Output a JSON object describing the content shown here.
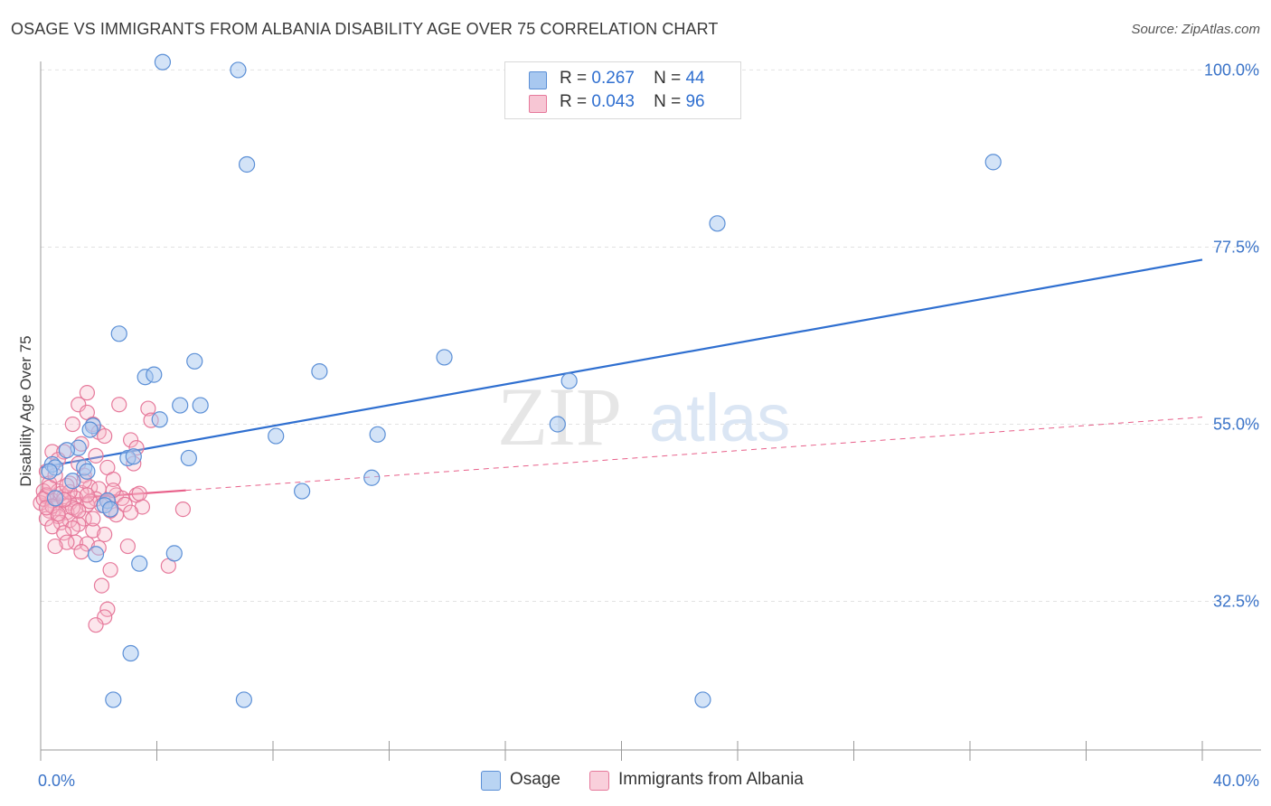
{
  "title": "OSAGE VS IMMIGRANTS FROM ALBANIA DISABILITY AGE OVER 75 CORRELATION CHART",
  "source": "Source: ZipAtlas.com",
  "watermark": {
    "zip": "ZIP",
    "atlas": "atlas"
  },
  "legend": {
    "rows": [
      {
        "r_label": "R =",
        "r_value": "0.267",
        "n_label": "N =",
        "n_value": "44"
      },
      {
        "r_label": "R =",
        "r_value": "0.043",
        "n_label": "N =",
        "n_value": "96"
      }
    ]
  },
  "bottom_legend": {
    "series1": "Osage",
    "series2": "Immigrants from Albania"
  },
  "colors": {
    "osage_fill": "#a8c8f0",
    "osage_stroke": "#5b8fd6",
    "osage_line": "#2f6fd0",
    "albania_fill": "#f7b6c8",
    "albania_stroke": "#e6799b",
    "albania_line": "#e8608a",
    "tick_label": "#3a73c8",
    "grid": "#e2e2e2"
  },
  "chart_data": {
    "type": "scatter",
    "title": "OSAGE VS IMMIGRANTS FROM ALBANIA DISABILITY AGE OVER 75 CORRELATION CHART",
    "xlabel": "",
    "ylabel": "Disability Age Over 75",
    "xlim": [
      0,
      40
    ],
    "ylim": [
      15,
      102
    ],
    "x_tick_labels": [
      "0.0%",
      "40.0%"
    ],
    "y_ticks": [
      32.5,
      55.0,
      77.5,
      100.0
    ],
    "y_tick_labels": [
      "32.5%",
      "55.0%",
      "77.5%",
      "100.0%"
    ],
    "grid": true,
    "legend_position": "top-center",
    "series": [
      {
        "name": "Osage",
        "r": 0.267,
        "n": 44,
        "points": [
          [
            4.2,
            101.0
          ],
          [
            6.8,
            100.0
          ],
          [
            7.1,
            88.0
          ],
          [
            32.8,
            88.3
          ],
          [
            23.3,
            80.5
          ],
          [
            2.7,
            66.5
          ],
          [
            5.3,
            63.0
          ],
          [
            3.6,
            61.0
          ],
          [
            3.9,
            61.3
          ],
          [
            9.6,
            61.7
          ],
          [
            13.9,
            63.5
          ],
          [
            18.2,
            60.5
          ],
          [
            4.8,
            57.4
          ],
          [
            5.5,
            57.4
          ],
          [
            4.1,
            55.6
          ],
          [
            17.8,
            55.0
          ],
          [
            8.1,
            53.5
          ],
          [
            11.6,
            53.7
          ],
          [
            1.8,
            54.8
          ],
          [
            1.7,
            54.3
          ],
          [
            1.3,
            52.0
          ],
          [
            0.9,
            51.7
          ],
          [
            3.0,
            50.7
          ],
          [
            3.2,
            50.9
          ],
          [
            5.1,
            50.7
          ],
          [
            0.4,
            49.9
          ],
          [
            0.5,
            49.5
          ],
          [
            1.5,
            49.5
          ],
          [
            1.6,
            49.0
          ],
          [
            0.3,
            49.0
          ],
          [
            1.1,
            47.8
          ],
          [
            11.4,
            48.2
          ],
          [
            9.0,
            46.5
          ],
          [
            0.5,
            45.6
          ],
          [
            2.3,
            45.3
          ],
          [
            2.2,
            44.7
          ],
          [
            2.4,
            44.2
          ],
          [
            1.9,
            38.5
          ],
          [
            4.6,
            38.6
          ],
          [
            3.4,
            37.3
          ],
          [
            3.1,
            25.9
          ],
          [
            2.5,
            20.0
          ],
          [
            7.0,
            20.0
          ],
          [
            22.8,
            20.0
          ]
        ]
      },
      {
        "name": "Immigrants from Albania",
        "r": 0.043,
        "n": 96,
        "points": [
          [
            1.6,
            59.0
          ],
          [
            1.3,
            57.5
          ],
          [
            2.7,
            57.5
          ],
          [
            3.7,
            57.0
          ],
          [
            1.6,
            56.5
          ],
          [
            1.1,
            55.0
          ],
          [
            1.8,
            55.0
          ],
          [
            3.8,
            55.5
          ],
          [
            2.0,
            54.0
          ],
          [
            2.2,
            53.5
          ],
          [
            3.1,
            53.0
          ],
          [
            1.4,
            52.5
          ],
          [
            3.3,
            52.0
          ],
          [
            0.4,
            51.5
          ],
          [
            0.8,
            51.5
          ],
          [
            1.9,
            51.0
          ],
          [
            0.6,
            50.5
          ],
          [
            1.3,
            50.0
          ],
          [
            3.2,
            50.0
          ],
          [
            2.3,
            49.5
          ],
          [
            0.2,
            49.0
          ],
          [
            1.5,
            48.5
          ],
          [
            2.5,
            48.0
          ],
          [
            0.3,
            47.5
          ],
          [
            1.0,
            47.5
          ],
          [
            1.7,
            47.0
          ],
          [
            2.0,
            46.8
          ],
          [
            0.1,
            46.5
          ],
          [
            0.6,
            46.5
          ],
          [
            1.4,
            46.3
          ],
          [
            2.6,
            46.0
          ],
          [
            3.3,
            46.0
          ],
          [
            0.2,
            45.8
          ],
          [
            0.8,
            45.8
          ],
          [
            1.2,
            45.6
          ],
          [
            1.9,
            45.5
          ],
          [
            0.4,
            45.3
          ],
          [
            2.3,
            45.2
          ],
          [
            0.0,
            45.0
          ],
          [
            1.0,
            45.0
          ],
          [
            1.6,
            44.8
          ],
          [
            2.1,
            44.7
          ],
          [
            3.5,
            44.5
          ],
          [
            0.5,
            44.3
          ],
          [
            1.2,
            44.2
          ],
          [
            4.9,
            44.2
          ],
          [
            0.3,
            44.0
          ],
          [
            0.9,
            43.8
          ],
          [
            2.6,
            43.5
          ],
          [
            0.6,
            43.3
          ],
          [
            1.5,
            43.0
          ],
          [
            0.2,
            43.0
          ],
          [
            1.0,
            42.8
          ],
          [
            0.7,
            42.5
          ],
          [
            1.3,
            42.3
          ],
          [
            0.4,
            42.0
          ],
          [
            1.1,
            41.8
          ],
          [
            1.8,
            41.5
          ],
          [
            0.8,
            41.2
          ],
          [
            1.2,
            40.0
          ],
          [
            2.2,
            41.0
          ],
          [
            0.9,
            40.0
          ],
          [
            1.6,
            39.8
          ],
          [
            3.0,
            39.5
          ],
          [
            0.5,
            39.5
          ],
          [
            2.0,
            39.3
          ],
          [
            1.4,
            38.8
          ],
          [
            4.4,
            37.0
          ],
          [
            2.4,
            36.5
          ],
          [
            2.1,
            34.5
          ],
          [
            2.3,
            31.5
          ],
          [
            2.2,
            30.5
          ],
          [
            1.9,
            29.5
          ],
          [
            0.2,
            46.0
          ],
          [
            0.7,
            46.2
          ],
          [
            1.0,
            46.4
          ],
          [
            0.1,
            45.5
          ],
          [
            0.4,
            44.6
          ],
          [
            0.6,
            43.6
          ],
          [
            1.1,
            44.4
          ],
          [
            2.8,
            45.6
          ],
          [
            3.4,
            46.2
          ],
          [
            1.7,
            45.2
          ],
          [
            2.4,
            44.0
          ],
          [
            0.3,
            47.0
          ],
          [
            1.5,
            47.8
          ],
          [
            2.9,
            44.8
          ],
          [
            0.5,
            48.5
          ],
          [
            1.8,
            43.0
          ],
          [
            0.9,
            47.2
          ],
          [
            2.5,
            46.6
          ],
          [
            1.3,
            44.0
          ],
          [
            0.2,
            44.4
          ],
          [
            3.1,
            43.8
          ],
          [
            0.8,
            45.4
          ],
          [
            1.6,
            46.0
          ]
        ]
      }
    ],
    "trendlines": [
      {
        "series": "Osage",
        "x": [
          0,
          40
        ],
        "y": [
          49.5,
          75.9
        ],
        "style": "solid"
      },
      {
        "series": "Immigrants from Albania",
        "x": [
          0,
          5
        ],
        "y": [
          45.3,
          46.6
        ],
        "style": "solid"
      },
      {
        "series": "Immigrants from Albania",
        "x": [
          5,
          40
        ],
        "y": [
          46.6,
          55.9
        ],
        "style": "dashed"
      }
    ]
  }
}
